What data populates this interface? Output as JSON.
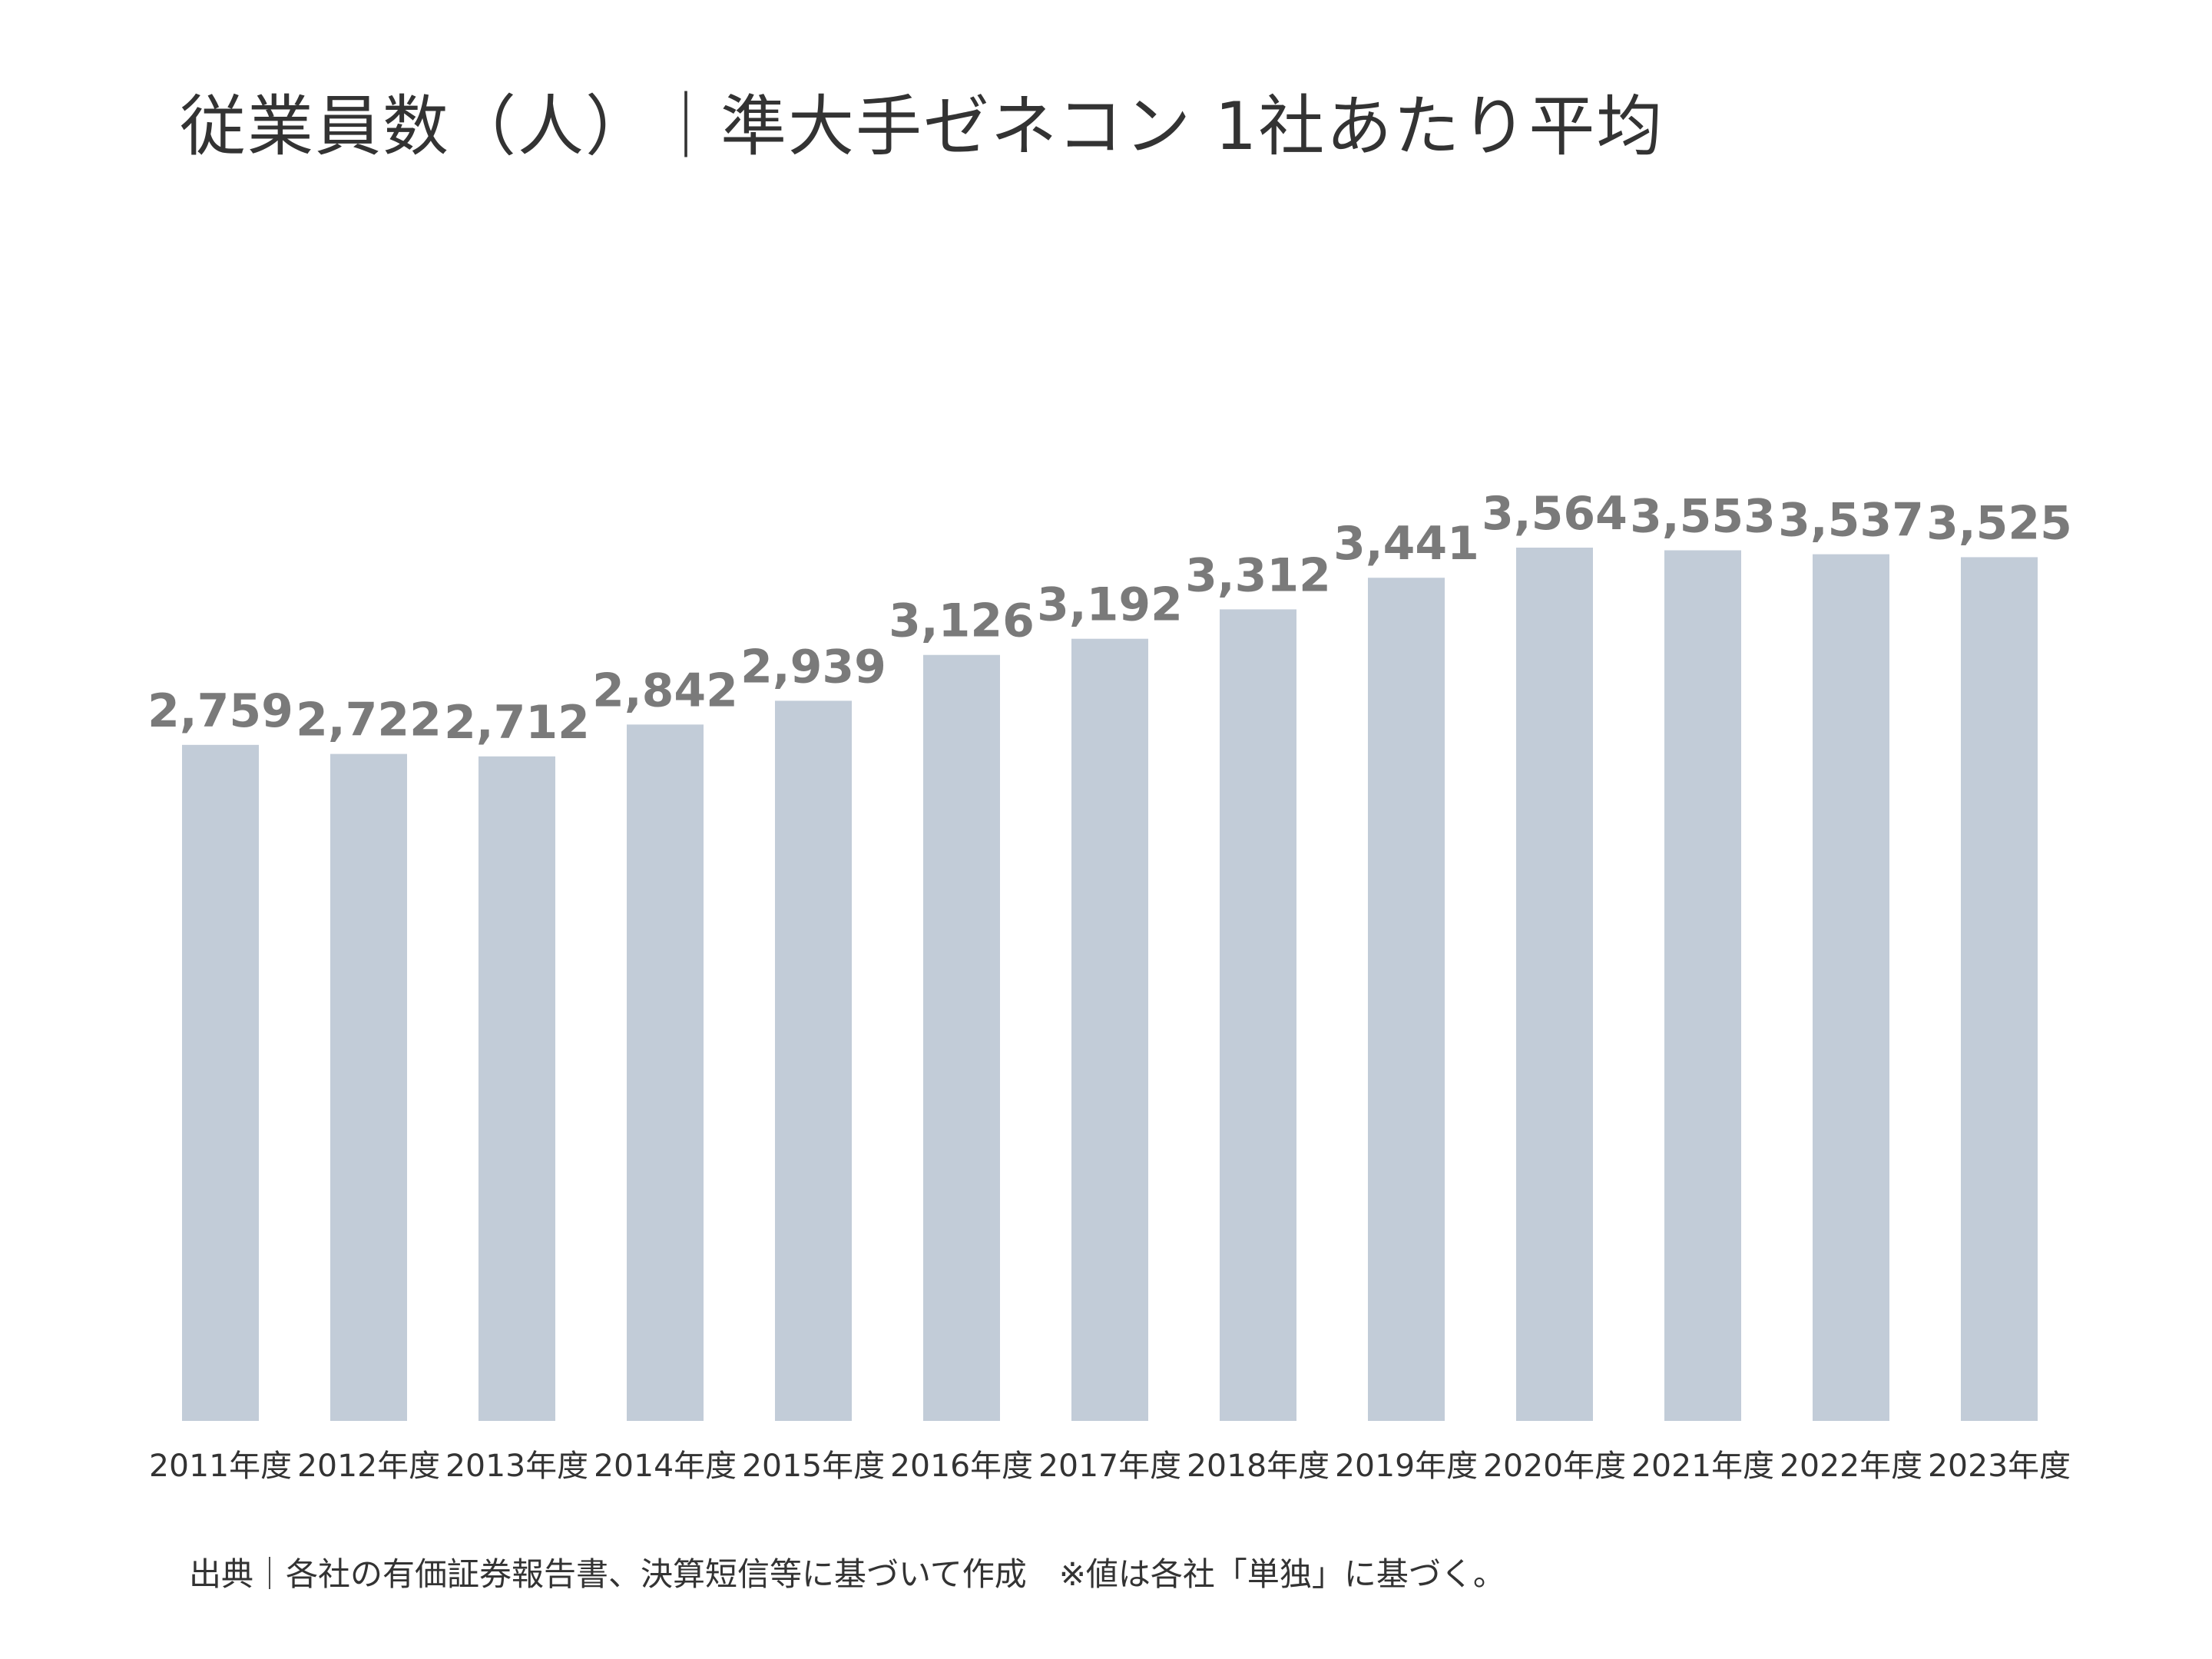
{
  "title": "従業員数（人）｜準大手ゼネコン 1社あたり平均",
  "source_note": "出典｜各社の有価証券報告書、決算短信等に基づいて作成　※値は各社「単独」に基づく。",
  "colors": {
    "bar": "#c2ccd8",
    "value_label": "#7a7a7a",
    "text": "#333333"
  },
  "chart_data": {
    "type": "bar",
    "categories": [
      "2011年度",
      "2012年度",
      "2013年度",
      "2014年度",
      "2015年度",
      "2016年度",
      "2017年度",
      "2018年度",
      "2019年度",
      "2020年度",
      "2021年度",
      "2022年度",
      "2023年度"
    ],
    "values": [
      2759,
      2722,
      2712,
      2842,
      2939,
      3126,
      3192,
      3312,
      3441,
      3564,
      3553,
      3537,
      3525
    ],
    "value_labels": [
      "2,759",
      "2,722",
      "2,712",
      "2,842",
      "2,939",
      "3,126",
      "3,192",
      "3,312",
      "3,441",
      "3,564",
      "3,553",
      "3,537",
      "3,525"
    ],
    "title": "従業員数（人）｜準大手ゼネコン 1社あたり平均",
    "xlabel": "",
    "ylabel": "",
    "ylim": [
      0,
      3564
    ],
    "grid": false,
    "legend": "none"
  }
}
